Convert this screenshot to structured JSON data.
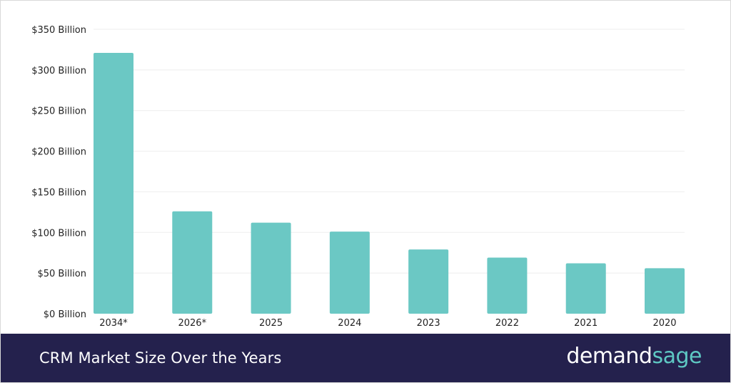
{
  "chart_data": {
    "type": "bar",
    "title": "CRM Market Size Over the Years",
    "categories": [
      "2034*",
      "2026*",
      "2025",
      "2024",
      "2023",
      "2022",
      "2021",
      "2020"
    ],
    "values": [
      321,
      126,
      112,
      101,
      79,
      69,
      62,
      56
    ],
    "y_ticks": [
      "$0 Billion",
      "$50 Billion",
      "$100 Billion",
      "$150 Billion",
      "$200 Billion",
      "$250 Billion",
      "$300 Billion",
      "$350 Billion"
    ],
    "ylim": [
      0,
      350
    ],
    "grid": true,
    "bar_color": "#6bc8c4",
    "grid_color": "#eeeeee"
  },
  "footer": {
    "title": "CRM Market Size Over the Years",
    "background": "#24214d"
  },
  "logo": {
    "part_a": "demand",
    "part_b": "sage",
    "color_a": "#ffffff",
    "color_b": "#5ec8c3"
  }
}
